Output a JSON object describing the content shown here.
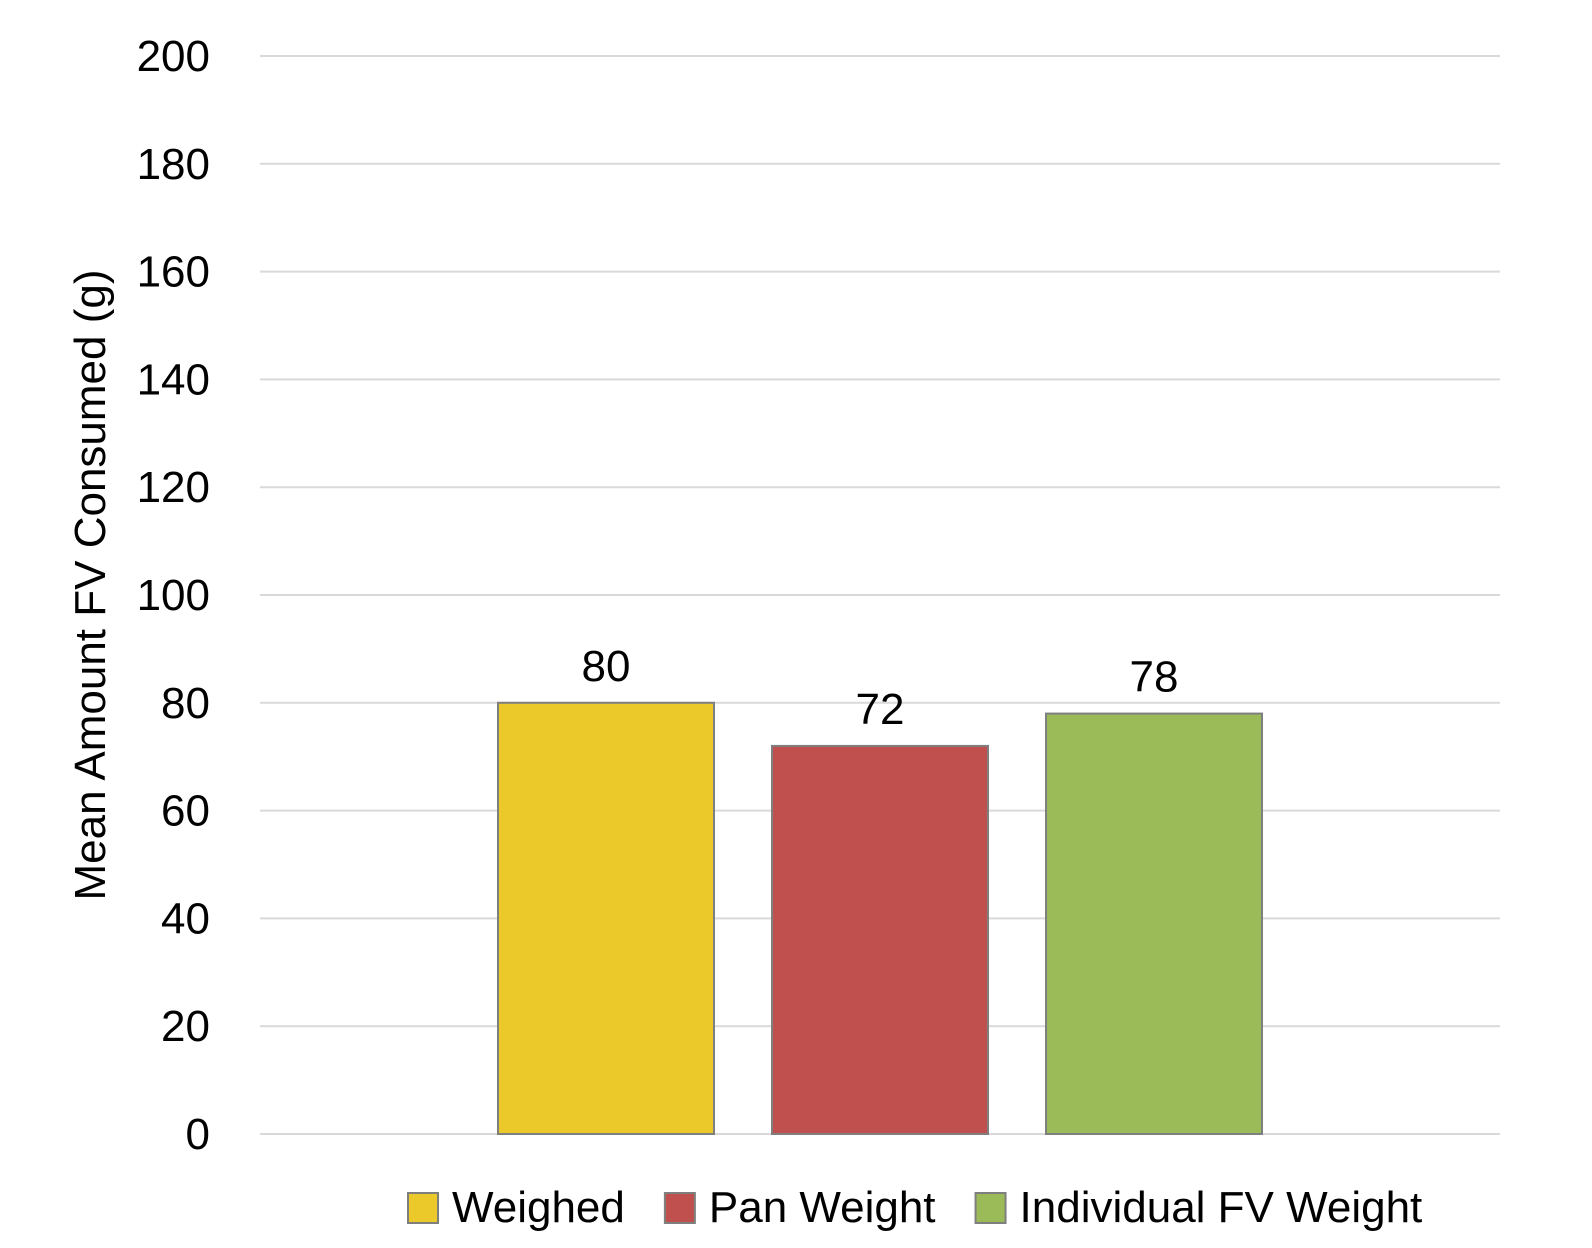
{
  "chart_data": {
    "type": "bar",
    "title": "",
    "xlabel": "",
    "ylabel": "Mean Amount FV Consumed (g)",
    "ylim": [
      0,
      200
    ],
    "yticks": [
      0,
      20,
      40,
      60,
      80,
      100,
      120,
      140,
      160,
      180,
      200
    ],
    "grid": true,
    "legend_position": "bottom",
    "series": [
      {
        "name": "Weighed",
        "values": [
          80
        ],
        "color": "#EBC92B"
      },
      {
        "name": "Pan Weight",
        "values": [
          72
        ],
        "color": "#C0504D"
      },
      {
        "name": "Individual FV Weight",
        "values": [
          78
        ],
        "color": "#9BBB59"
      }
    ],
    "data_labels": [
      "80",
      "72",
      "78"
    ]
  }
}
